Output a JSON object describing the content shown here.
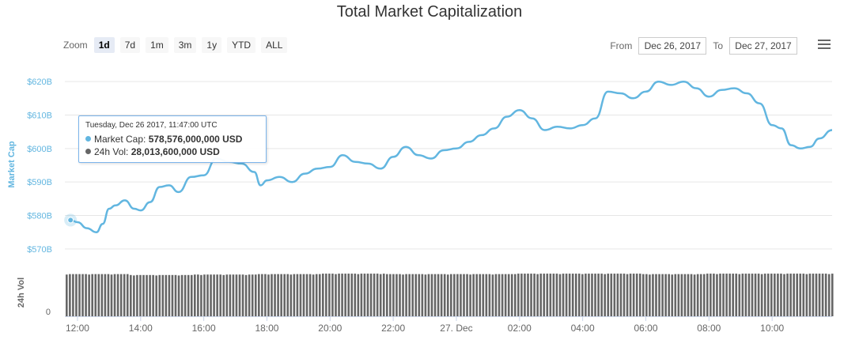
{
  "header": {
    "title": "Total Market Capitalization"
  },
  "zoom": {
    "label": "Zoom",
    "buttons": [
      "1d",
      "7d",
      "1m",
      "3m",
      "1y",
      "YTD",
      "ALL"
    ],
    "active": "1d"
  },
  "range": {
    "from_label": "From",
    "from_value": "Dec 26, 2017",
    "to_label": "To",
    "to_value": "Dec 27, 2017"
  },
  "tooltip": {
    "date": "Tuesday, Dec 26 2017, 11:47:00 UTC",
    "market_cap_label": "Market Cap:",
    "market_cap_value": "578,576,000,000 USD",
    "volume_label": "24h Vol:",
    "volume_value": "28,013,600,000 USD"
  },
  "colors": {
    "market_cap": "#62b6e0",
    "volume": "#666666",
    "axis_label": "#62b6e0"
  },
  "chart_data": {
    "type": "line",
    "title": "Total Market Capitalization",
    "ylabel": "Market Cap",
    "ylim": [
      565,
      625
    ],
    "y_ticks": [
      570,
      580,
      590,
      600,
      610,
      620
    ],
    "y_tick_labels": [
      "$570B",
      "$580B",
      "$590B",
      "$600B",
      "$610B",
      "$620B"
    ],
    "x_range_hours": [
      11.6,
      35.9
    ],
    "x_ticks": [
      12,
      14,
      16,
      18,
      20,
      22,
      24,
      26,
      28,
      30,
      32,
      34
    ],
    "x_tick_labels": [
      "12:00",
      "14:00",
      "16:00",
      "18:00",
      "20:00",
      "22:00",
      "27. Dec",
      "02:00",
      "04:00",
      "06:00",
      "08:00",
      "10:00"
    ],
    "grid": true,
    "series": [
      {
        "name": "Market Cap",
        "x_hours": [
          11.78,
          12.0,
          12.3,
          12.6,
          12.8,
          13.0,
          13.2,
          13.5,
          13.8,
          14.0,
          14.3,
          14.6,
          14.9,
          15.2,
          15.6,
          16.0,
          16.4,
          16.8,
          17.2,
          17.6,
          17.8,
          18.0,
          18.4,
          18.8,
          19.2,
          19.6,
          20.0,
          20.4,
          20.8,
          21.2,
          21.6,
          22.0,
          22.4,
          22.8,
          23.2,
          23.6,
          24.0,
          24.4,
          24.8,
          25.2,
          25.6,
          26.0,
          26.4,
          26.8,
          27.2,
          27.6,
          28.0,
          28.4,
          28.8,
          29.2,
          29.6,
          30.0,
          30.4,
          30.8,
          31.2,
          31.6,
          32.0,
          32.4,
          32.8,
          33.2,
          33.6,
          34.0,
          34.3,
          34.6,
          34.9,
          35.2,
          35.5,
          35.9
        ],
        "values": [
          578.6,
          578.0,
          576.2,
          575.0,
          577.5,
          582.0,
          583.0,
          584.5,
          582.0,
          581.5,
          584.0,
          588.5,
          589.0,
          587.0,
          591.5,
          592.0,
          597.0,
          596.0,
          595.5,
          593.0,
          589.0,
          590.5,
          591.5,
          590.0,
          592.5,
          594.0,
          594.5,
          598.0,
          596.0,
          595.5,
          594.0,
          597.5,
          600.5,
          598.0,
          597.0,
          599.5,
          600.0,
          602.0,
          604.0,
          606.0,
          609.5,
          611.5,
          609.0,
          605.5,
          606.5,
          606.0,
          607.0,
          609.0,
          617.0,
          616.5,
          615.0,
          617.0,
          620.0,
          619.0,
          620.0,
          618.0,
          615.5,
          617.5,
          618.0,
          616.5,
          613.5,
          607.0,
          606.0,
          601.0,
          600.0,
          600.5,
          603.0,
          605.5
        ]
      },
      {
        "name": "24h Vol",
        "type": "column",
        "ylabel": "24h Vol",
        "y_tick_labels": [
          "0"
        ],
        "relative_level": [
          0.92,
          0.9,
          0.91,
          0.92,
          0.93,
          0.92,
          0.92,
          0.93,
          0.93,
          0.92,
          0.93,
          0.93
        ]
      }
    ]
  }
}
